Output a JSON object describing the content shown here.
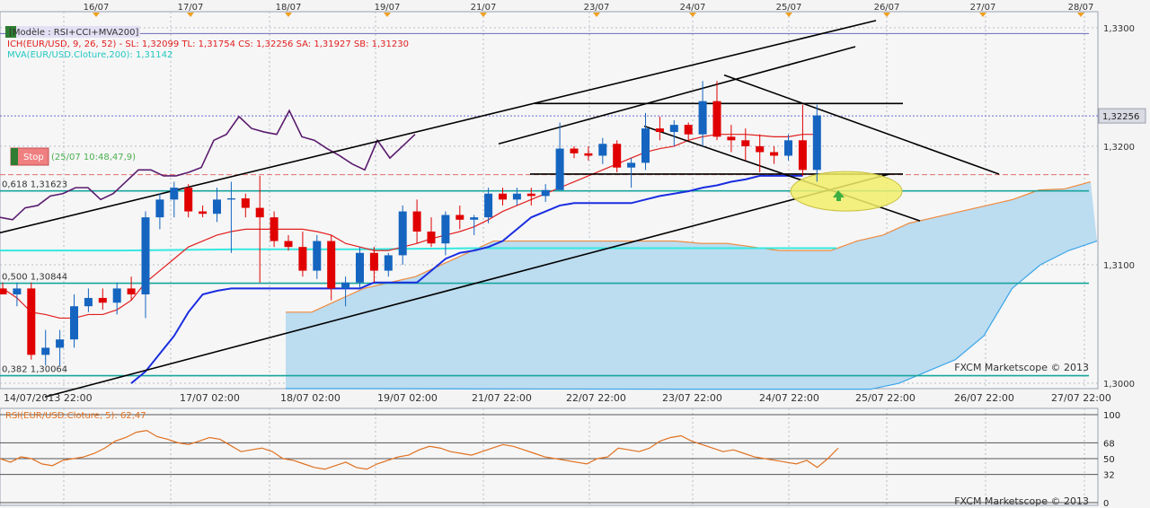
{
  "header": {
    "model_label": "[Modèle : RSI+CCI+MVA200]",
    "ich_label": "ICH(EUR/USD, 9, 26, 52) - SL: 1,32099 TL: 1,31754 CS: 1,32256 SA: 1,31927 SB: 1,31230",
    "mva_label": "MVA(EUR/USD.Cloture,200): 1,31142",
    "stop_label": "Stop",
    "stop_time": "(25/07 10:48,47,9)",
    "watermark_main": "FXCM Marketscope © 2013",
    "watermark_sub": "FXCM Marketscope © 2013",
    "rsi_label": "RSI(EUR/USD.Cloture, 5): 62,47"
  },
  "colors": {
    "background": "#f4f4f4",
    "grid": "#b8bcc8",
    "bull_candle": "#1565c0",
    "bear_candle": "#e00000",
    "tenkan": "#e21e1e",
    "kijun": "#1a2ee0",
    "cloud_fill": "#bcdcf0",
    "senkou_a": "#f08a3c",
    "senkou_b": "#3aa5e8",
    "chikou": "#5a1b6e",
    "mva": "#35e8e0",
    "fib": "#17a59e",
    "trendline": "#000000",
    "highlight": "#f2ee6a",
    "rsi_line": "#e07020",
    "current_price_box": "#d9dae2"
  },
  "chart_data": [
    {
      "type": "candlestick",
      "title": "EUR/USD",
      "top_dates": [
        "16/07",
        "17/07",
        "18/07",
        "19/07",
        "21/07",
        "23/07",
        "24/07",
        "25/07",
        "26/07",
        "27/07",
        "28/07"
      ],
      "time_labels": [
        "14/07/2013 22:00",
        "17/07 02:00",
        "18/07 02:00",
        "19/07 02:00",
        "21/07 22:00",
        "22/07 22:00",
        "23/07 22:00",
        "24/07 22:00",
        "25/07 22:00",
        "26/07 22:00",
        "27/07 22:00"
      ],
      "y_ticks": [
        "1,3300",
        "1,3200",
        "1,3100",
        "1,3000"
      ],
      "y_tick_values": [
        1.33,
        1.32,
        1.31,
        1.3
      ],
      "ylim": [
        1.29955,
        1.33135
      ],
      "current_price": "1,32256",
      "current_price_value": 1.32256,
      "fib_levels": [
        {
          "label": "0,618 1,31623",
          "value": 1.31623
        },
        {
          "label": "0,500 1,30844",
          "value": 1.30844
        },
        {
          "label": "0,382 1,30064",
          "value": 1.30064
        }
      ],
      "stop_value": 1.3176,
      "mva_value": 1.31142,
      "ohlc": [
        {
          "o": 1.308,
          "h": 1.3085,
          "l": 1.3075,
          "c": 1.3075
        },
        {
          "o": 1.3075,
          "h": 1.3085,
          "l": 1.3065,
          "c": 1.308
        },
        {
          "o": 1.308,
          "h": 1.3085,
          "l": 1.302,
          "c": 1.3024
        },
        {
          "o": 1.3024,
          "h": 1.3045,
          "l": 1.3015,
          "c": 1.303
        },
        {
          "o": 1.303,
          "h": 1.3045,
          "l": 1.3015,
          "c": 1.3037
        },
        {
          "o": 1.3037,
          "h": 1.3075,
          "l": 1.303,
          "c": 1.3065
        },
        {
          "o": 1.3065,
          "h": 1.308,
          "l": 1.306,
          "c": 1.3072
        },
        {
          "o": 1.3072,
          "h": 1.308,
          "l": 1.3062,
          "c": 1.3068
        },
        {
          "o": 1.3068,
          "h": 1.3085,
          "l": 1.3058,
          "c": 1.308
        },
        {
          "o": 1.308,
          "h": 1.309,
          "l": 1.307,
          "c": 1.3075
        },
        {
          "o": 1.3075,
          "h": 1.3145,
          "l": 1.3055,
          "c": 1.314
        },
        {
          "o": 1.314,
          "h": 1.316,
          "l": 1.313,
          "c": 1.3155
        },
        {
          "o": 1.3155,
          "h": 1.317,
          "l": 1.314,
          "c": 1.3165
        },
        {
          "o": 1.3165,
          "h": 1.3168,
          "l": 1.314,
          "c": 1.3145
        },
        {
          "o": 1.3145,
          "h": 1.315,
          "l": 1.314,
          "c": 1.3143
        },
        {
          "o": 1.3143,
          "h": 1.3165,
          "l": 1.3136,
          "c": 1.3155
        },
        {
          "o": 1.3155,
          "h": 1.317,
          "l": 1.311,
          "c": 1.3156
        },
        {
          "o": 1.3156,
          "h": 1.316,
          "l": 1.314,
          "c": 1.3148
        },
        {
          "o": 1.3148,
          "h": 1.3175,
          "l": 1.3085,
          "c": 1.314
        },
        {
          "o": 1.314,
          "h": 1.3145,
          "l": 1.3115,
          "c": 1.312
        },
        {
          "o": 1.312,
          "h": 1.3125,
          "l": 1.3112,
          "c": 1.3115
        },
        {
          "o": 1.3115,
          "h": 1.3128,
          "l": 1.309,
          "c": 1.3095
        },
        {
          "o": 1.3095,
          "h": 1.3125,
          "l": 1.3088,
          "c": 1.312
        },
        {
          "o": 1.312,
          "h": 1.3125,
          "l": 1.307,
          "c": 1.308
        },
        {
          "o": 1.308,
          "h": 1.309,
          "l": 1.3065,
          "c": 1.3085
        },
        {
          "o": 1.3085,
          "h": 1.3115,
          "l": 1.308,
          "c": 1.311
        },
        {
          "o": 1.311,
          "h": 1.3115,
          "l": 1.3085,
          "c": 1.3095
        },
        {
          "o": 1.3095,
          "h": 1.311,
          "l": 1.309,
          "c": 1.3108
        },
        {
          "o": 1.3108,
          "h": 1.315,
          "l": 1.31,
          "c": 1.3145
        },
        {
          "o": 1.3145,
          "h": 1.3155,
          "l": 1.3118,
          "c": 1.3128
        },
        {
          "o": 1.3128,
          "h": 1.314,
          "l": 1.3115,
          "c": 1.3118
        },
        {
          "o": 1.3118,
          "h": 1.3145,
          "l": 1.3108,
          "c": 1.3142
        },
        {
          "o": 1.3142,
          "h": 1.315,
          "l": 1.313,
          "c": 1.3138
        },
        {
          "o": 1.3138,
          "h": 1.3142,
          "l": 1.3125,
          "c": 1.314
        },
        {
          "o": 1.314,
          "h": 1.3165,
          "l": 1.3135,
          "c": 1.316
        },
        {
          "o": 1.316,
          "h": 1.3165,
          "l": 1.315,
          "c": 1.3155
        },
        {
          "o": 1.3155,
          "h": 1.3165,
          "l": 1.315,
          "c": 1.316
        },
        {
          "o": 1.316,
          "h": 1.3165,
          "l": 1.315,
          "c": 1.3158
        },
        {
          "o": 1.3158,
          "h": 1.3168,
          "l": 1.3153,
          "c": 1.3163
        },
        {
          "o": 1.3163,
          "h": 1.322,
          "l": 1.3163,
          "c": 1.3198
        },
        {
          "o": 1.3198,
          "h": 1.32,
          "l": 1.319,
          "c": 1.3194
        },
        {
          "o": 1.3194,
          "h": 1.32,
          "l": 1.3188,
          "c": 1.3192
        },
        {
          "o": 1.3192,
          "h": 1.3207,
          "l": 1.3185,
          "c": 1.3202
        },
        {
          "o": 1.3202,
          "h": 1.3205,
          "l": 1.3178,
          "c": 1.3182
        },
        {
          "o": 1.3182,
          "h": 1.319,
          "l": 1.3165,
          "c": 1.3186
        },
        {
          "o": 1.3186,
          "h": 1.3228,
          "l": 1.318,
          "c": 1.3215
        },
        {
          "o": 1.3215,
          "h": 1.3225,
          "l": 1.3205,
          "c": 1.3212
        },
        {
          "o": 1.3212,
          "h": 1.3222,
          "l": 1.32,
          "c": 1.3218
        },
        {
          "o": 1.3218,
          "h": 1.322,
          "l": 1.3205,
          "c": 1.321
        },
        {
          "o": 1.321,
          "h": 1.3255,
          "l": 1.32,
          "c": 1.3238
        },
        {
          "o": 1.3238,
          "h": 1.3255,
          "l": 1.3205,
          "c": 1.3208
        },
        {
          "o": 1.3208,
          "h": 1.3218,
          "l": 1.3195,
          "c": 1.3205
        },
        {
          "o": 1.3205,
          "h": 1.3215,
          "l": 1.3188,
          "c": 1.32
        },
        {
          "o": 1.32,
          "h": 1.321,
          "l": 1.3178,
          "c": 1.3195
        },
        {
          "o": 1.3195,
          "h": 1.32,
          "l": 1.3185,
          "c": 1.3192
        },
        {
          "o": 1.3192,
          "h": 1.321,
          "l": 1.3188,
          "c": 1.3205
        },
        {
          "o": 1.3205,
          "h": 1.3235,
          "l": 1.3175,
          "c": 1.318
        },
        {
          "o": 1.318,
          "h": 1.3235,
          "l": 1.317,
          "c": 1.3226
        }
      ],
      "tenkan_sen": [
        1.308,
        1.3072,
        1.306,
        1.3058,
        1.3055,
        1.3055,
        1.3058,
        1.3058,
        1.3062,
        1.307,
        1.3085,
        1.3095,
        1.3105,
        1.3115,
        1.312,
        1.3125,
        1.3128,
        1.313,
        1.313,
        1.313,
        1.313,
        1.313,
        1.3128,
        1.3125,
        1.3118,
        1.3115,
        1.3112,
        1.3112,
        1.3115,
        1.3118,
        1.3122,
        1.3125,
        1.3128,
        1.3132,
        1.3138,
        1.3145,
        1.315,
        1.3155,
        1.316,
        1.3165,
        1.317,
        1.3175,
        1.318,
        1.3185,
        1.319,
        1.3195,
        1.3198,
        1.32,
        1.3205,
        1.3208,
        1.321,
        1.321,
        1.321,
        1.3209,
        1.3208,
        1.3208,
        1.321,
        1.321
      ],
      "kijun_sen": [
        null,
        null,
        null,
        null,
        null,
        null,
        null,
        null,
        null,
        1.3,
        1.301,
        1.3025,
        1.304,
        1.306,
        1.3075,
        1.3078,
        1.308,
        1.308,
        1.308,
        1.308,
        1.308,
        1.308,
        1.308,
        1.308,
        1.308,
        1.308,
        1.3085,
        1.3085,
        1.3085,
        1.3085,
        1.3095,
        1.3105,
        1.311,
        1.3112,
        1.3115,
        1.312,
        1.313,
        1.314,
        1.3145,
        1.315,
        1.3152,
        1.3152,
        1.3152,
        1.3152,
        1.3152,
        1.3155,
        1.3158,
        1.316,
        1.3162,
        1.3165,
        1.3167,
        1.317,
        1.3172,
        1.3175,
        1.3175,
        1.3175,
        1.3175
      ],
      "chikou_span": [
        1.314,
        1.3138,
        1.3148,
        1.315,
        1.3158,
        1.316,
        1.3165,
        1.3165,
        1.3155,
        1.316,
        1.317,
        1.318,
        1.318,
        1.3175,
        1.3175,
        1.3178,
        1.3182,
        1.3205,
        1.321,
        1.3225,
        1.3215,
        1.3212,
        1.321,
        1.323,
        1.3208,
        1.3205,
        1.3198,
        1.3192,
        1.3185,
        1.318,
        1.3205,
        1.319,
        1.32,
        1.321
      ],
      "senkou_a": [
        1.306,
        1.306,
        1.307,
        1.308,
        1.3085,
        1.309,
        1.31,
        1.311,
        1.312,
        1.312,
        1.312,
        1.312,
        1.312,
        1.312,
        1.312,
        1.312,
        1.3118,
        1.3118,
        1.3115,
        1.3112,
        1.3112,
        1.3112,
        1.312,
        1.3125,
        1.3135,
        1.314,
        1.3145,
        1.315,
        1.3155,
        1.3163,
        1.3164,
        1.317
      ],
      "senkou_b": [
        1.2995,
        1.2995,
        1.2995,
        1.2995,
        1.2995,
        1.2995,
        1.2995,
        1.3,
        1.301,
        1.302,
        1.304,
        1.308,
        1.31,
        1.3112,
        1.312
      ],
      "mva_line": [
        1.3112,
        1.3112,
        1.3113,
        1.3113,
        1.3114,
        1.3114,
        1.3114,
        1.3114
      ],
      "ylabel": "",
      "xlabel": ""
    },
    {
      "type": "line",
      "title": "RSI(EUR/USD.Cloture, 5)",
      "y_ticks": [
        "100",
        "68",
        "50",
        "32",
        "0"
      ],
      "y_tick_values": [
        100,
        68,
        50,
        32,
        0
      ],
      "ylim": [
        0,
        100
      ],
      "current_value": 62.47,
      "values": [
        50,
        46,
        52,
        50,
        44,
        42,
        48,
        50,
        52,
        56,
        62,
        70,
        74,
        80,
        82,
        75,
        72,
        68,
        66,
        70,
        74,
        72,
        65,
        58,
        60,
        62,
        58,
        50,
        48,
        44,
        40,
        38,
        42,
        46,
        40,
        38,
        44,
        48,
        52,
        54,
        60,
        64,
        62,
        58,
        56,
        54,
        58,
        62,
        66,
        64,
        60,
        56,
        52,
        50,
        48,
        46,
        44,
        50,
        52,
        62,
        60,
        58,
        62,
        70,
        74,
        76,
        70,
        66,
        62,
        58,
        60,
        56,
        52,
        50,
        48,
        46,
        44,
        48,
        40,
        50,
        62
      ]
    }
  ]
}
